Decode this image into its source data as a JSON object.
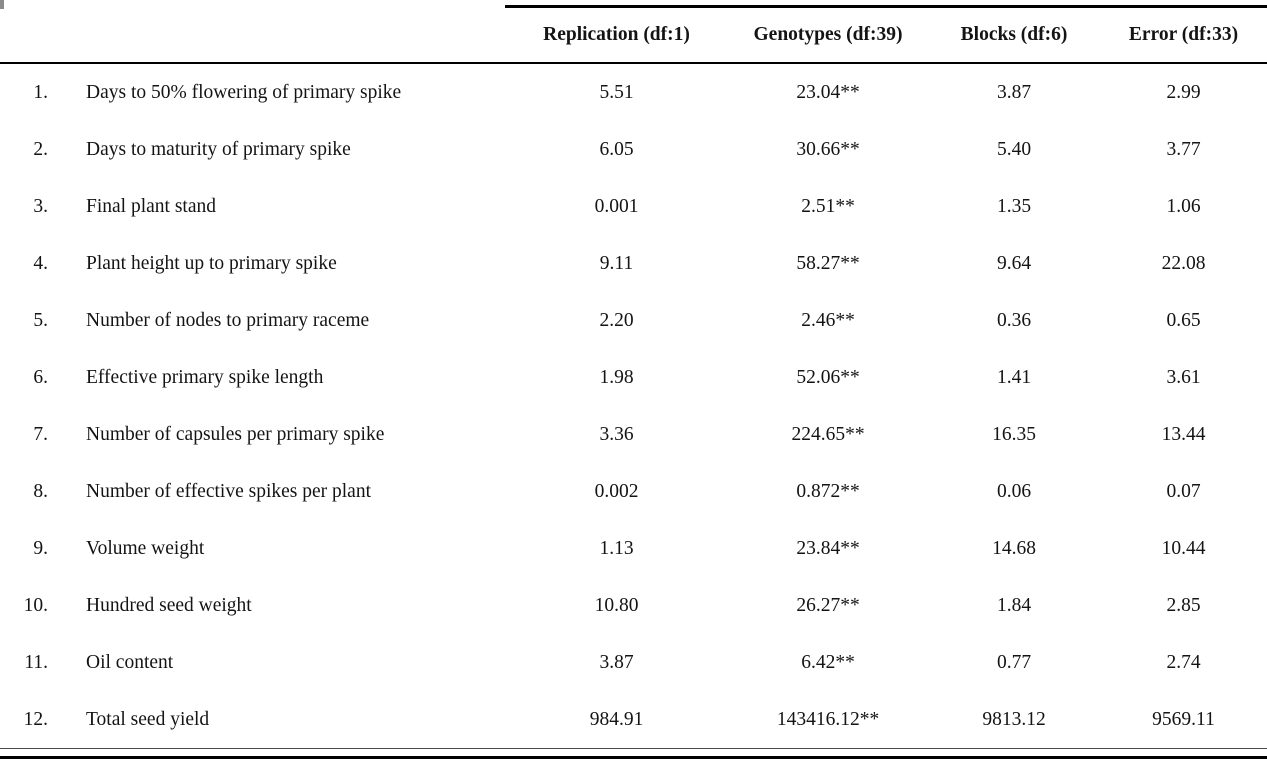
{
  "colors": {
    "text": "#141414",
    "rule": "#000000",
    "thin_rule": "#4a4a4a"
  },
  "table": {
    "headers": [
      "Replication (df:1)",
      "Genotypes (df:39)",
      "Blocks (df:6)",
      "Error (df:33)"
    ],
    "rows": [
      {
        "num": "1.",
        "trait": "Days to 50% flowering of primary spike",
        "values": [
          "5.51",
          "23.04**",
          "3.87",
          "2.99"
        ]
      },
      {
        "num": "2.",
        "trait": "Days to maturity of primary spike",
        "values": [
          "6.05",
          "30.66**",
          "5.40",
          "3.77"
        ]
      },
      {
        "num": "3.",
        "trait": "Final plant stand",
        "values": [
          "0.001",
          "2.51**",
          "1.35",
          "1.06"
        ]
      },
      {
        "num": "4.",
        "trait": "Plant height up to primary spike",
        "values": [
          "9.11",
          "58.27**",
          "9.64",
          "22.08"
        ]
      },
      {
        "num": "5.",
        "trait": "Number of nodes to primary raceme",
        "values": [
          "2.20",
          "2.46**",
          "0.36",
          "0.65"
        ]
      },
      {
        "num": "6.",
        "trait": "Effective primary spike length",
        "values": [
          "1.98",
          "52.06**",
          "1.41",
          "3.61"
        ]
      },
      {
        "num": "7.",
        "trait": "Number of capsules per primary spike",
        "values": [
          "3.36",
          "224.65**",
          "16.35",
          "13.44"
        ]
      },
      {
        "num": "8.",
        "trait": "Number of effective spikes per plant",
        "values": [
          "0.002",
          "0.872**",
          "0.06",
          "0.07"
        ]
      },
      {
        "num": "9.",
        "trait": "Volume weight",
        "values": [
          "1.13",
          "23.84**",
          "14.68",
          "10.44"
        ]
      },
      {
        "num": "10.",
        "trait": "Hundred seed weight",
        "values": [
          "10.80",
          "26.27**",
          "1.84",
          "2.85"
        ]
      },
      {
        "num": "11.",
        "trait": "Oil content",
        "values": [
          "3.87",
          "6.42**",
          "0.77",
          "2.74"
        ]
      },
      {
        "num": "12.",
        "trait": "Total seed yield",
        "values": [
          "984.91",
          "143416.12**",
          "9813.12",
          "9569.11"
        ]
      }
    ]
  }
}
